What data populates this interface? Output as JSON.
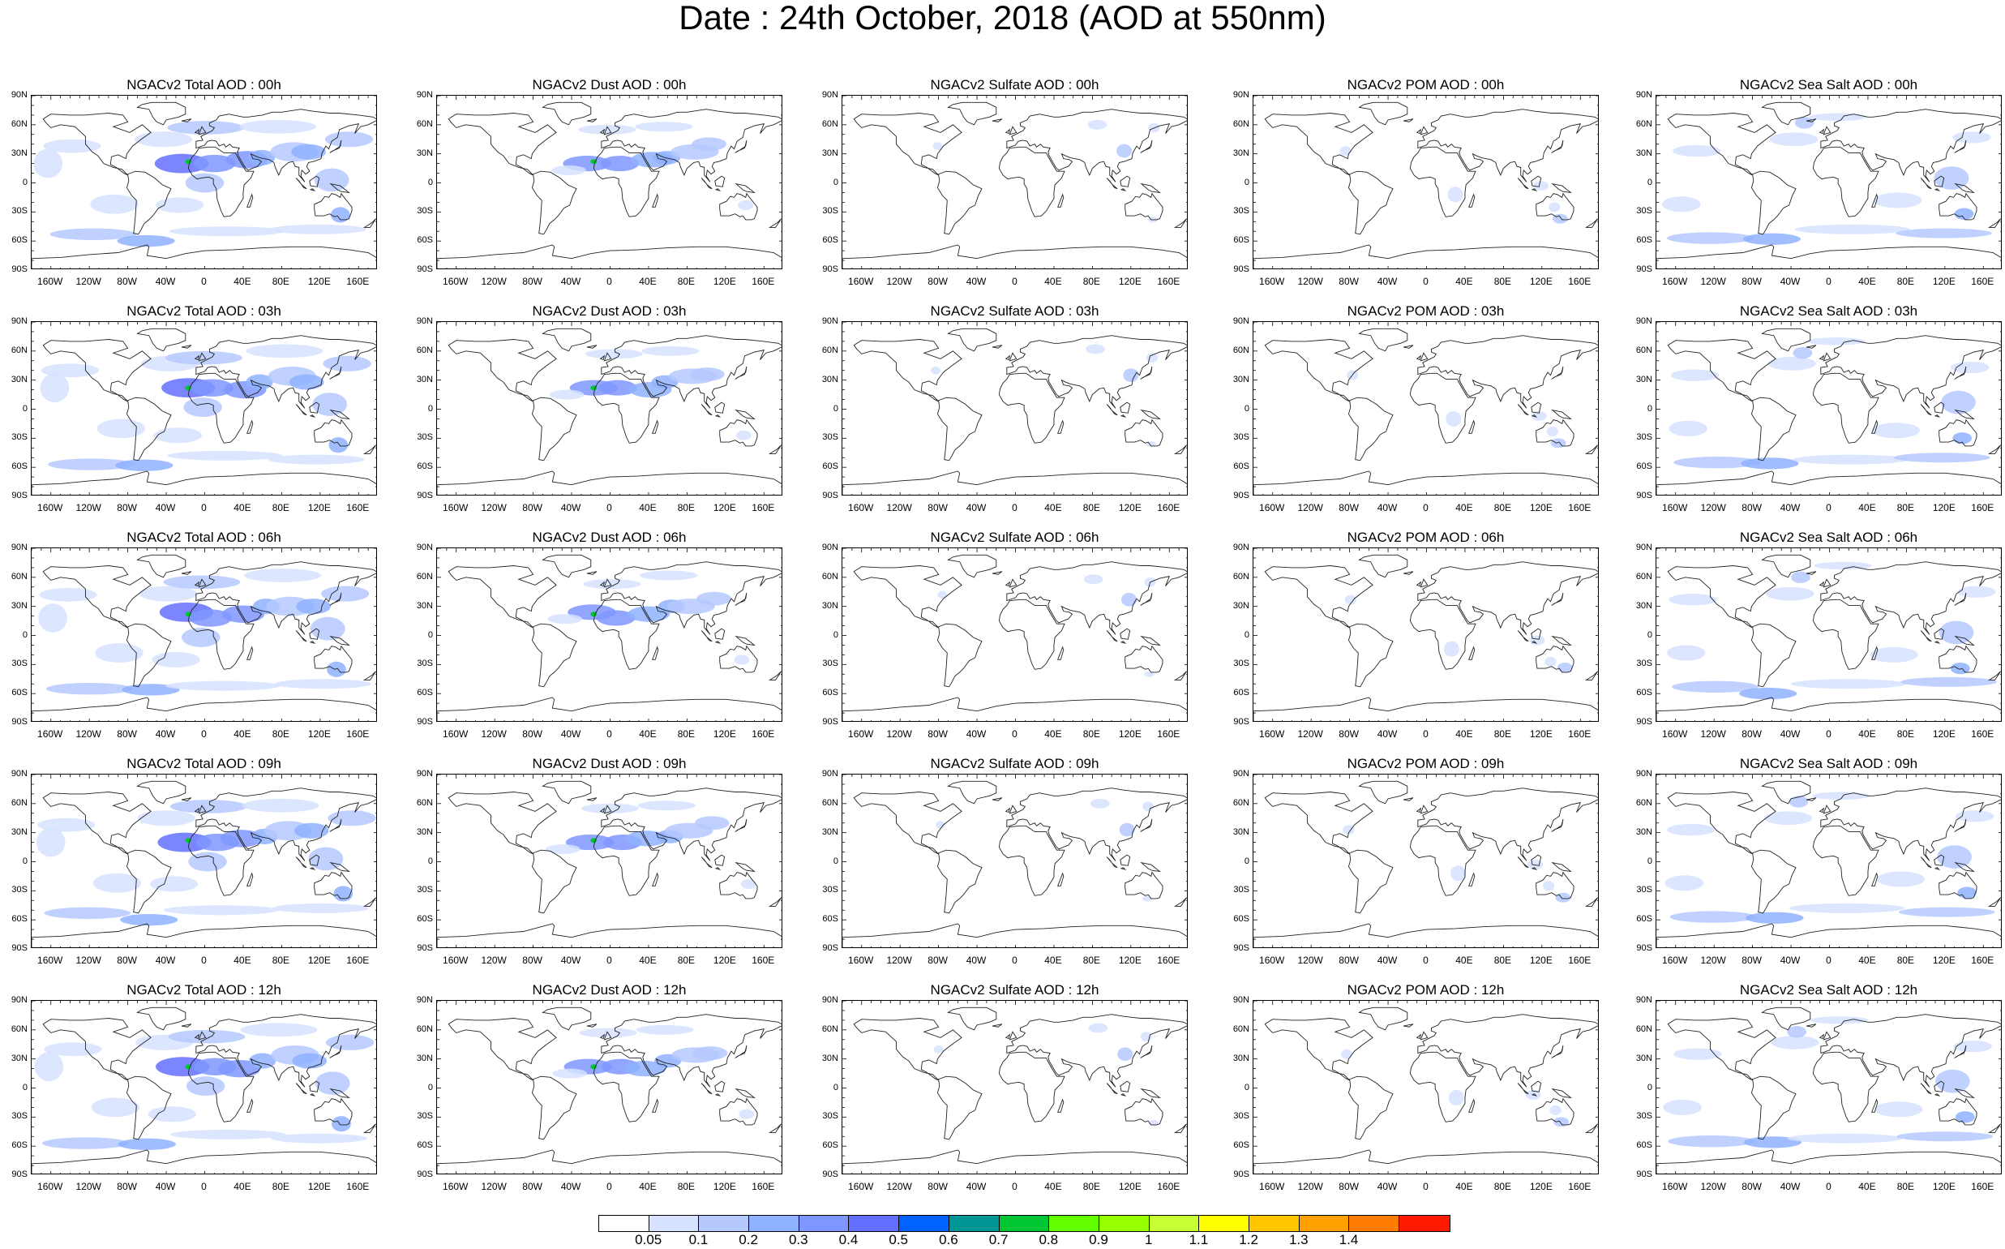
{
  "title": "Date : 24th October, 2018 (AOD at 550nm)",
  "rows": [
    {
      "hour": "00h",
      "titles": [
        "NGACv2 Total AOD : 00h",
        "NGACv2 Dust AOD : 00h",
        "NGACv2 Sulfate AOD : 00h",
        "NGACv2 POM AOD : 00h",
        "NGACv2 Sea Salt AOD : 00h"
      ]
    },
    {
      "hour": "03h",
      "titles": [
        "NGACv2 Total AOD : 03h",
        "NGACv2 Dust AOD : 03h",
        "NGACv2 Sulfate AOD : 03h",
        "NGACv2 POM AOD : 03h",
        "NGACv2 Sea Salt AOD : 03h"
      ]
    },
    {
      "hour": "06h",
      "titles": [
        "NGACv2 Total AOD : 06h",
        "NGACv2 Dust AOD : 06h",
        "NGACv2 Sulfate AOD : 06h",
        "NGACv2 POM AOD : 06h",
        "NGACv2 Sea Salt AOD : 06h"
      ]
    },
    {
      "hour": "09h",
      "titles": [
        "NGACv2 Total AOD : 09h",
        "NGACv2 Dust AOD : 09h",
        "NGACv2 Sulfate AOD : 09h",
        "NGACv2 POM AOD : 09h",
        "NGACv2 Sea Salt  AOD : 09h"
      ]
    },
    {
      "hour": "12h",
      "titles": [
        "NGACv2 Total AOD  : 12h",
        "NGACv2 Dust AOD : 12h",
        "NGACv2 Sulfate AOD : 12h",
        "NGACv2 POM  AOD : 12h",
        "NGACv2 Sea Salt AOD : 12h"
      ]
    }
  ],
  "lat_labels": [
    "90N",
    "60N",
    "30N",
    "0",
    "30S",
    "60S",
    "90S"
  ],
  "lon_labels": [
    "160W",
    "120W",
    "80W",
    "40W",
    "0",
    "40E",
    "80E",
    "120E",
    "160E"
  ],
  "colorbar": {
    "colors": [
      "#ffffff",
      "#d6e2ff",
      "#b5c9ff",
      "#8eb2ff",
      "#7f96ff",
      "#6370ff",
      "#0063ff",
      "#009696",
      "#00c633",
      "#63ff00",
      "#96ff00",
      "#c6ff33",
      "#ffff00",
      "#ffc600",
      "#ffa000",
      "#ff7c00",
      "#ff1900"
    ],
    "labels": [
      "0.05",
      "0.1",
      "0.2",
      "0.3",
      "0.4",
      "0.5",
      "0.6",
      "0.7",
      "0.8",
      "0.9",
      "1",
      "1.1",
      "1.2",
      "1.3",
      "1.4"
    ]
  }
}
